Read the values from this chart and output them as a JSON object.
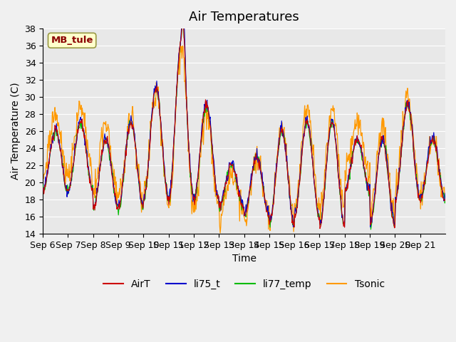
{
  "title": "Air Temperatures",
  "xlabel": "Time",
  "ylabel": "Air Temperature (C)",
  "ylim": [
    14,
    38
  ],
  "yticks": [
    14,
    16,
    18,
    20,
    22,
    24,
    26,
    28,
    30,
    32,
    34,
    36,
    38
  ],
  "x_tick_labels": [
    "Sep 6",
    "Sep 7",
    "Sep 8",
    "Sep 9",
    "Sep 10",
    "Sep 11",
    "Sep 12",
    "Sep 13",
    "Sep 14",
    "Sep 15",
    "Sep 16",
    "Sep 17",
    "Sep 18",
    "Sep 19",
    "Sep 20",
    "Sep 21"
  ],
  "annotation_text": "MB_tule",
  "line_colors": {
    "AirT": "#cc0000",
    "li75_t": "#0000cc",
    "li77_temp": "#00bb00",
    "Tsonic": "#ff9900"
  },
  "plot_bg_color": "#e8e8e8",
  "fig_bg_color": "#f0f0f0",
  "grid_color": "#ffffff",
  "title_fontsize": 13,
  "axis_label_fontsize": 10,
  "tick_fontsize": 9,
  "legend_fontsize": 10,
  "n_days": 16,
  "pts_per_day": 48,
  "daily_min": [
    19,
    19,
    17,
    17,
    18,
    18,
    18,
    17,
    16,
    15,
    16,
    15,
    19,
    15,
    18,
    18
  ],
  "daily_max": [
    26,
    27,
    25,
    27,
    31,
    36,
    29,
    22,
    23,
    26,
    27,
    27,
    25,
    25,
    29,
    25
  ]
}
